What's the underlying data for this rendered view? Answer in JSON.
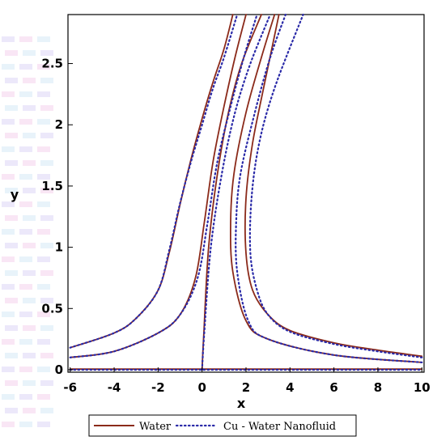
{
  "chart_data": {
    "type": "line",
    "xlabel": "x",
    "ylabel": "y",
    "xlim": [
      -6.1,
      10.1
    ],
    "ylim": [
      -0.02,
      2.9
    ],
    "x_ticks": [
      -6,
      -4,
      -2,
      0,
      2,
      4,
      6,
      8,
      10
    ],
    "y_ticks": [
      0,
      0.5,
      1,
      1.5,
      2,
      2.5
    ],
    "x_tick_labels": [
      "-6",
      "-4",
      "-2",
      "0",
      "2",
      "4",
      "6",
      "8",
      "10"
    ],
    "y_tick_labels": [
      "0",
      "0.5",
      "1",
      "1.5",
      "2",
      "2.5"
    ],
    "legend": {
      "placement": "bottom-center"
    },
    "series": [
      {
        "name": "Water",
        "style": "solid",
        "color": "#8b2a1a",
        "curves": [
          [
            [
              -6,
              0.18
            ],
            [
              -4,
              0.3
            ],
            [
              -3,
              0.42
            ],
            [
              -2,
              0.65
            ],
            [
              -1.5,
              0.95
            ],
            [
              -1,
              1.35
            ],
            [
              -0.5,
              1.72
            ],
            [
              0,
              2.05
            ],
            [
              0.5,
              2.35
            ],
            [
              1,
              2.62
            ],
            [
              1.4,
              2.9
            ]
          ],
          [
            [
              -6,
              0.1
            ],
            [
              -4,
              0.15
            ],
            [
              -2,
              0.3
            ],
            [
              -1,
              0.45
            ],
            [
              -0.3,
              0.75
            ],
            [
              0.1,
              1.2
            ],
            [
              0.5,
              1.7
            ],
            [
              1,
              2.15
            ],
            [
              1.5,
              2.55
            ],
            [
              2,
              2.9
            ]
          ],
          [
            [
              0,
              0
            ],
            [
              0.08,
              0.3
            ],
            [
              0.3,
              1.0
            ],
            [
              0.7,
              1.6
            ],
            [
              1.2,
              2.1
            ],
            [
              1.8,
              2.5
            ],
            [
              2.7,
              2.9
            ]
          ],
          [
            [
              10,
              0.06
            ],
            [
              6,
              0.12
            ],
            [
              3,
              0.25
            ],
            [
              2,
              0.4
            ],
            [
              1.4,
              0.8
            ],
            [
              1.3,
              1.2
            ],
            [
              1.45,
              1.6
            ],
            [
              2.0,
              2.1
            ],
            [
              2.7,
              2.55
            ],
            [
              3.3,
              2.9
            ]
          ],
          [
            [
              10,
              0.11
            ],
            [
              8,
              0.16
            ],
            [
              6,
              0.22
            ],
            [
              4,
              0.32
            ],
            [
              3,
              0.45
            ],
            [
              2.3,
              0.65
            ],
            [
              2,
              0.95
            ],
            [
              2.0,
              1.4
            ],
            [
              2.3,
              1.85
            ],
            [
              2.8,
              2.3
            ],
            [
              3.5,
              2.9
            ]
          ],
          [
            [
              -6,
              0.005
            ],
            [
              10,
              0.005
            ]
          ]
        ]
      },
      {
        "name": "Cu - Water Nanofluid",
        "style": "dotted",
        "color": "#2a2aa8",
        "curves": [
          [
            [
              -6,
              0.18
            ],
            [
              -4,
              0.3
            ],
            [
              -3,
              0.42
            ],
            [
              -2,
              0.65
            ],
            [
              -1.5,
              0.97
            ],
            [
              -1,
              1.36
            ],
            [
              -0.5,
              1.7
            ],
            [
              0,
              2.0
            ],
            [
              0.5,
              2.3
            ],
            [
              1,
              2.55
            ],
            [
              1.6,
              2.9
            ]
          ],
          [
            [
              -6,
              0.1
            ],
            [
              -4,
              0.15
            ],
            [
              -2,
              0.3
            ],
            [
              -1,
              0.45
            ],
            [
              -0.2,
              0.75
            ],
            [
              0.25,
              1.2
            ],
            [
              0.7,
              1.7
            ],
            [
              1.3,
              2.15
            ],
            [
              1.9,
              2.55
            ],
            [
              2.5,
              2.9
            ]
          ],
          [
            [
              0,
              0
            ],
            [
              0.1,
              0.3
            ],
            [
              0.4,
              1.0
            ],
            [
              0.9,
              1.6
            ],
            [
              1.5,
              2.1
            ],
            [
              2.2,
              2.5
            ],
            [
              3.1,
              2.9
            ]
          ],
          [
            [
              10,
              0.06
            ],
            [
              6,
              0.12
            ],
            [
              3,
              0.25
            ],
            [
              2.1,
              0.4
            ],
            [
              1.6,
              0.8
            ],
            [
              1.55,
              1.2
            ],
            [
              1.75,
              1.6
            ],
            [
              2.4,
              2.1
            ],
            [
              3.1,
              2.55
            ],
            [
              3.8,
              2.9
            ]
          ],
          [
            [
              10,
              0.1
            ],
            [
              8,
              0.15
            ],
            [
              6,
              0.21
            ],
            [
              4,
              0.31
            ],
            [
              3,
              0.45
            ],
            [
              2.5,
              0.65
            ],
            [
              2.2,
              0.95
            ],
            [
              2.25,
              1.4
            ],
            [
              2.6,
              1.85
            ],
            [
              3.3,
              2.3
            ],
            [
              4.6,
              2.9
            ]
          ],
          [
            [
              -6,
              0.0
            ],
            [
              10,
              0.0
            ]
          ]
        ]
      }
    ]
  }
}
